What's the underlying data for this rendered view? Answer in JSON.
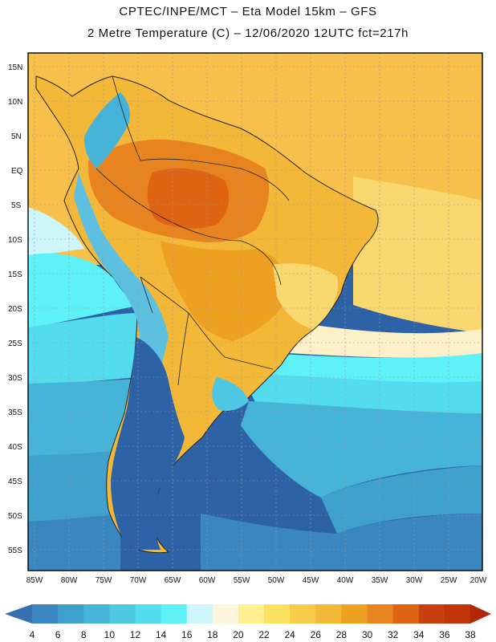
{
  "header": {
    "title_line1": "CPTEC/INPE/MCT –  Eta Model 15km – GFS",
    "title_line2": "2 Metre Temperature (C) – 12/06/2020 12UTC fct=217h"
  },
  "axes": {
    "lat_labels": [
      "15N",
      "10N",
      "5N",
      "EQ",
      "5S",
      "10S",
      "15S",
      "20S",
      "25S",
      "30S",
      "35S",
      "40S",
      "45S",
      "50S",
      "55S"
    ],
    "lon_labels": [
      "85W",
      "80W",
      "75W",
      "70W",
      "65W",
      "60W",
      "55W",
      "50W",
      "45W",
      "40W",
      "35W",
      "30W",
      "25W",
      "20W"
    ]
  },
  "colorbar": {
    "labels": [
      "4",
      "6",
      "8",
      "10",
      "12",
      "14",
      "16",
      "18",
      "20",
      "22",
      "24",
      "26",
      "28",
      "30",
      "32",
      "34",
      "36",
      "38"
    ],
    "colors": [
      "#3670b0",
      "#3a86c0",
      "#3ea0cc",
      "#46b4d8",
      "#4ec8e2",
      "#52dced",
      "#5ef2f8",
      "#cdf5fb",
      "#fef6dc",
      "#fef090",
      "#fce060",
      "#f8cc48",
      "#f4b838",
      "#eea020",
      "#e88420",
      "#de6414",
      "#c84010",
      "#c03408",
      "#b02808"
    ]
  },
  "palette": {
    "ocean_south": "#2e62a6",
    "frame": "#000000",
    "grid": "#9a9a9a",
    "border": "#222222"
  }
}
